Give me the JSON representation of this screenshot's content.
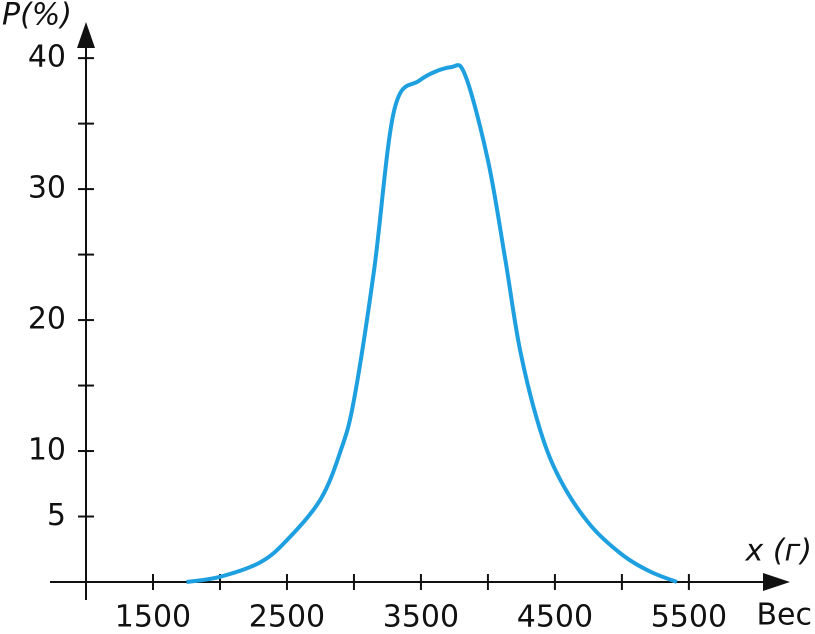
{
  "chart_data": {
    "type": "line",
    "ylabel": "P(%)",
    "xlabel": "x (г)",
    "xlabel2": "Вес",
    "x": [
      1750,
      2000,
      2300,
      2500,
      2750,
      2900,
      3000,
      3150,
      3300,
      3490,
      3720,
      3830,
      4000,
      4130,
      4240,
      4390,
      4540,
      4760,
      5000,
      5210,
      5410
    ],
    "values": [
      0,
      0.4,
      1.5,
      3.2,
      6.3,
      10,
      13.9,
      23.8,
      36,
      38.3,
      39.3,
      38.7,
      32.2,
      24.6,
      17.7,
      11.6,
      7.8,
      4.4,
      2.1,
      0.8,
      0
    ],
    "color": "#1ea0e0",
    "xlim": [
      1000,
      6180
    ],
    "ylim": [
      0,
      42.3
    ],
    "xticks": [
      1500,
      2500,
      3500,
      4500,
      5500
    ],
    "xminorticks": [
      2000,
      3000,
      4000,
      5000
    ],
    "yticks": [
      5,
      10,
      20,
      30,
      40
    ],
    "yminorticks": [
      15,
      25,
      35
    ]
  }
}
